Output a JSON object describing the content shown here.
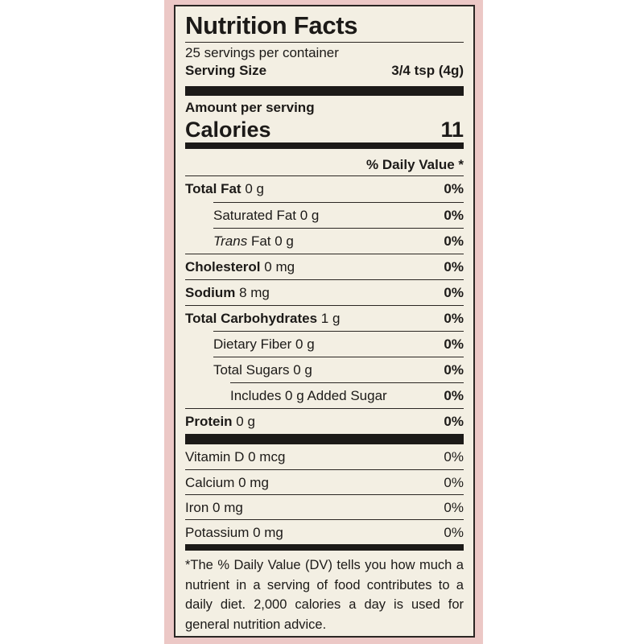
{
  "title": "Nutrition Facts",
  "servings": "25 servings per container",
  "serving_size": {
    "label": "Serving Size",
    "value": "3/4 tsp (4g)"
  },
  "amount_per_serving": "Amount per serving",
  "calories": {
    "label": "Calories",
    "value": "11"
  },
  "daily_value_header": "% Daily Value *",
  "nutrients": [
    {
      "name": "Total Fat",
      "amount": "0 g",
      "dv": "0%"
    },
    {
      "name": "Saturated Fat",
      "amount": "0 g",
      "dv": "0%"
    },
    {
      "prefix": "Trans",
      "name": "Fat",
      "amount": "0 g",
      "dv": "0%"
    },
    {
      "name": "Cholesterol",
      "amount": "0 mg",
      "dv": "0%"
    },
    {
      "name": "Sodium",
      "amount": "8 mg",
      "dv": "0%"
    },
    {
      "name": "Total Carbohydrates",
      "amount": "1 g",
      "dv": "0%"
    },
    {
      "name": "Dietary Fiber",
      "amount": "0 g",
      "dv": "0%"
    },
    {
      "name": "Total Sugars",
      "amount": "0 g",
      "dv": "0%"
    },
    {
      "name": "Includes 0 g Added Sugar",
      "dv": "0%"
    },
    {
      "name": "Protein",
      "amount": "0 g",
      "dv": "0%"
    }
  ],
  "vitamins": [
    {
      "name": "Vitamin D 0 mcg",
      "dv": "0%"
    },
    {
      "name": "Calcium 0 mg",
      "dv": "0%"
    },
    {
      "name": "Iron 0 mg",
      "dv": "0%"
    },
    {
      "name": "Potassium 0 mg",
      "dv": "0%"
    }
  ],
  "footnote": "*The % Daily Value (DV) tells you how much a nutrient in a serving of food contributes to a daily diet. 2,000 calories a day is used for general nutrition advice."
}
